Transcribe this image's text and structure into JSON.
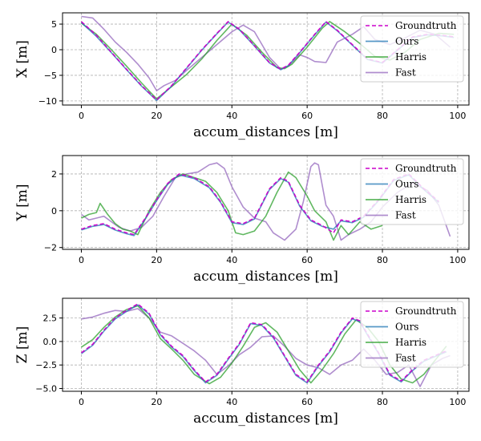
{
  "figure": {
    "panels": [
      {
        "id": "x",
        "ylabel": "X [m]",
        "xlabel": "accum_distances [m]"
      },
      {
        "id": "y",
        "ylabel": "Y [m]",
        "xlabel": "accum_distances [m]"
      },
      {
        "id": "z",
        "ylabel": "Z [m]",
        "xlabel": "accum_distances [m]"
      }
    ],
    "legend": [
      "Groundtruth",
      "Ours",
      "Harris",
      "Fast"
    ]
  },
  "chart_data": [
    {
      "type": "line",
      "xlabel": "accum_distances [m]",
      "ylabel": "X [m]",
      "xlim": [
        -5,
        103
      ],
      "ylim": [
        -10.8,
        7.2
      ],
      "xticks": [
        0,
        20,
        40,
        60,
        80,
        100
      ],
      "yticks": [
        5,
        0,
        -5,
        -10
      ],
      "grid": true,
      "legend_position": "top-right",
      "series": [
        {
          "name": "Groundtruth",
          "color": "#cc00cc",
          "dashed": true,
          "x": [
            0,
            4,
            8,
            12,
            16,
            20,
            24,
            28,
            32,
            36,
            39,
            42,
            46,
            50,
            53,
            55,
            58,
            62,
            65,
            68,
            72,
            76,
            80,
            84,
            88,
            92,
            96,
            99
          ],
          "y": [
            5.5,
            2.8,
            -0.5,
            -3.8,
            -7,
            -9.8,
            -7,
            -3.5,
            0,
            3.2,
            5.5,
            4,
            0.8,
            -2.5,
            -3.8,
            -3,
            -0.5,
            3,
            5.5,
            3.8,
            1,
            -1.8,
            -2.5,
            0,
            2.5,
            3,
            2.8,
            2.5
          ]
        },
        {
          "name": "Ours",
          "color": "#1f77b4",
          "x": [
            0,
            4,
            8,
            12,
            16,
            20,
            24,
            28,
            32,
            36,
            39,
            42,
            46,
            50,
            53,
            55,
            58,
            62,
            65,
            68,
            72,
            76,
            80,
            84,
            88,
            92,
            96,
            99
          ],
          "y": [
            5.3,
            2.6,
            -0.6,
            -3.9,
            -7.1,
            -9.9,
            -7.1,
            -3.6,
            -0.1,
            3.1,
            5.4,
            3.9,
            0.7,
            -2.6,
            -3.9,
            -3.1,
            -0.6,
            2.9,
            5.4,
            3.7,
            0.9,
            -1.9,
            -2.6,
            -0.1,
            2.4,
            2.9,
            2.7,
            2.4
          ]
        },
        {
          "name": "Harris",
          "color": "#2ca02c",
          "x": [
            0,
            4,
            8,
            12,
            16,
            20,
            24,
            28,
            32,
            36,
            40,
            44,
            48,
            52,
            54,
            56,
            60,
            64,
            66,
            70,
            74,
            78,
            82,
            86,
            90,
            95,
            99
          ],
          "y": [
            5.2,
            3,
            0,
            -3.2,
            -6.5,
            -9.6,
            -7.2,
            -4.8,
            -1.8,
            1.8,
            5,
            2.8,
            -0.5,
            -3.5,
            -3.7,
            -2.8,
            0.5,
            4.2,
            5.5,
            3.5,
            1.2,
            -1.3,
            -2,
            -0.5,
            2,
            3.2,
            3
          ]
        },
        {
          "name": "Fast",
          "color": "#9467bd",
          "x": [
            0,
            3,
            6,
            9,
            12,
            15,
            18,
            20,
            22,
            25,
            28,
            32,
            36,
            40,
            43,
            46,
            48,
            50,
            53,
            55,
            58,
            60,
            62,
            65,
            68,
            72,
            75,
            78,
            82,
            86,
            90,
            94,
            98
          ],
          "y": [
            6.5,
            6.2,
            4,
            1.5,
            -0.5,
            -2.8,
            -5.5,
            -8,
            -7,
            -6,
            -4,
            -1.5,
            1,
            3.5,
            4.8,
            3.5,
            1,
            -1.5,
            -3.8,
            -3.2,
            -1,
            -1.5,
            -2.3,
            -2.5,
            1.5,
            3,
            4.5,
            2,
            1,
            2.3,
            3.8,
            3,
            0.5
          ]
        }
      ]
    },
    {
      "type": "line",
      "xlabel": "accum_distances [m]",
      "ylabel": "Y [m]",
      "xlim": [
        -5,
        103
      ],
      "ylim": [
        -2.1,
        3
      ],
      "xticks": [
        0,
        20,
        40,
        60,
        80,
        100
      ],
      "yticks": [
        2,
        0,
        -2
      ],
      "grid": true,
      "legend_position": "top-right",
      "series": [
        {
          "name": "Groundtruth",
          "color": "#cc00cc",
          "dashed": true,
          "x": [
            0,
            3,
            6,
            9,
            12,
            14,
            17,
            20,
            23,
            26,
            30,
            34,
            37,
            40,
            43,
            46,
            50,
            53,
            55,
            58,
            61,
            64,
            67,
            69,
            72,
            75,
            79,
            83,
            87,
            91,
            95
          ],
          "y": [
            -1,
            -0.8,
            -0.7,
            -1,
            -1.2,
            -1.3,
            -0.4,
            0.6,
            1.5,
            2,
            1.8,
            1.3,
            0.5,
            -0.6,
            -0.7,
            -0.4,
            1.2,
            1.8,
            1.6,
            0.3,
            -0.5,
            -0.8,
            -1.2,
            -0.5,
            -0.6,
            -0.3,
            0.6,
            1.7,
            2.0,
            1.2,
            0.5
          ]
        },
        {
          "name": "Ours",
          "color": "#1f77b4",
          "x": [
            0,
            3,
            6,
            9,
            12,
            14,
            17,
            20,
            23,
            26,
            30,
            34,
            37,
            40,
            43,
            46,
            50,
            53,
            55,
            58,
            61,
            64,
            67,
            69,
            72,
            75,
            79,
            83,
            87,
            91,
            95
          ],
          "y": [
            -1.05,
            -0.85,
            -0.75,
            -1.05,
            -1.25,
            -1.35,
            -0.45,
            0.55,
            1.45,
            1.95,
            1.75,
            1.25,
            0.45,
            -0.65,
            -0.75,
            -0.45,
            1.15,
            1.75,
            1.55,
            0.25,
            -0.55,
            -0.85,
            -1,
            -0.55,
            -0.65,
            -0.35,
            0.55,
            1.65,
            1.95,
            1.15,
            0.45
          ]
        },
        {
          "name": "Harris",
          "color": "#2ca02c",
          "x": [
            0,
            2,
            4,
            5,
            7,
            9,
            11,
            13,
            15,
            18,
            21,
            24,
            27,
            30,
            33,
            36,
            39,
            41,
            43,
            46,
            49,
            52,
            55,
            57,
            60,
            62,
            65,
            67,
            69,
            71,
            74,
            77,
            80
          ],
          "y": [
            -0.4,
            -0.2,
            -0.1,
            0.4,
            -0.2,
            -0.7,
            -1,
            -1.1,
            -1.3,
            0,
            1,
            1.7,
            2,
            1.8,
            1.6,
            1,
            0,
            -1.2,
            -1.3,
            -1.1,
            -0.3,
            1,
            2.1,
            1.8,
            0.8,
            0,
            -0.6,
            -1.6,
            -0.8,
            -1.3,
            -0.6,
            -1,
            -0.8
          ]
        },
        {
          "name": "Fast",
          "color": "#9467bd",
          "x": [
            0,
            2,
            4,
            6,
            8,
            10,
            13,
            16,
            19,
            22,
            25,
            28,
            31,
            34,
            36,
            38,
            40,
            43,
            46,
            49,
            51,
            54,
            57,
            59,
            61,
            62,
            63,
            65,
            67,
            69,
            71,
            74,
            77,
            80,
            84,
            88,
            92,
            95,
            98
          ],
          "y": [
            -0.2,
            -0.5,
            -0.4,
            -0.3,
            -0.6,
            -0.9,
            -1.1,
            -0.9,
            -0.3,
            0.8,
            1.8,
            2,
            2.1,
            2.5,
            2.6,
            2.3,
            1.3,
            0.2,
            -0.4,
            -0.6,
            -1.2,
            -1.6,
            -1,
            0.5,
            2.4,
            2.6,
            2.5,
            0.3,
            -0.3,
            -1.6,
            -1.3,
            -1,
            -0.6,
            0.2,
            1,
            1.5,
            1.1,
            0.3,
            -1.4
          ]
        }
      ]
    },
    {
      "type": "line",
      "xlabel": "accum_distances [m]",
      "ylabel": "Z [m]",
      "xlim": [
        -5,
        103
      ],
      "ylim": [
        -5.3,
        4.6
      ],
      "xticks": [
        0,
        20,
        40,
        60,
        80,
        100
      ],
      "yticks": [
        2.5,
        0.0,
        -2.5,
        -5.0
      ],
      "ytick_labels": [
        "2.5",
        "0.0",
        "−2.5",
        "−5.0"
      ],
      "grid": true,
      "legend_position": "top-right",
      "series": [
        {
          "name": "Groundtruth",
          "color": "#cc00cc",
          "dashed": true,
          "x": [
            0,
            3,
            6,
            9,
            12,
            15,
            18,
            21,
            24,
            27,
            30,
            33,
            36,
            39,
            42,
            45,
            48,
            51,
            54,
            57,
            60,
            63,
            66,
            69,
            72,
            74,
            76,
            79,
            82,
            85,
            88,
            91,
            94,
            97
          ],
          "y": [
            -1.2,
            -0.3,
            1.2,
            2.5,
            3.3,
            4,
            3,
            0.8,
            -0.5,
            -1.5,
            -3,
            -4.3,
            -3.5,
            -1.8,
            -0.2,
            2,
            1.8,
            0.5,
            -1.5,
            -3.5,
            -4.3,
            -2.5,
            -1,
            1,
            2.5,
            2.2,
            0.8,
            -1.2,
            -3.5,
            -4.2,
            -3,
            -2,
            -1.5,
            -1
          ]
        },
        {
          "name": "Ours",
          "color": "#1f77b4",
          "x": [
            0,
            3,
            6,
            9,
            12,
            15,
            18,
            21,
            24,
            27,
            30,
            33,
            36,
            39,
            42,
            45,
            48,
            51,
            54,
            57,
            60,
            63,
            66,
            69,
            72,
            74,
            76,
            79,
            82,
            85,
            88,
            91,
            94,
            97
          ],
          "y": [
            -1.3,
            -0.4,
            1.1,
            2.4,
            3.2,
            3.9,
            2.9,
            0.7,
            -0.6,
            -1.6,
            -3.1,
            -4.4,
            -3.6,
            -1.9,
            -0.3,
            1.9,
            1.7,
            0.4,
            -1.6,
            -3.6,
            -4.4,
            -2.6,
            -1.1,
            0.9,
            2.4,
            2.1,
            0.7,
            -1.3,
            -3.6,
            -4.3,
            -3.1,
            -2.1,
            -1.6,
            -1.1
          ]
        },
        {
          "name": "Harris",
          "color": "#2ca02c",
          "x": [
            0,
            3,
            6,
            9,
            12,
            15,
            18,
            21,
            24,
            27,
            30,
            34,
            37,
            40,
            43,
            46,
            49,
            52,
            55,
            58,
            61,
            64,
            67,
            70,
            73,
            76,
            79,
            82,
            85,
            88,
            91,
            94,
            97
          ],
          "y": [
            -0.6,
            0.2,
            1.5,
            2.6,
            3.4,
            3.8,
            2.5,
            0.3,
            -0.8,
            -2,
            -3.5,
            -4.5,
            -3.8,
            -2.3,
            -0.5,
            1.5,
            2,
            1,
            -1,
            -3,
            -4.4,
            -3,
            -1.3,
            0.8,
            2.3,
            1.5,
            0,
            -2.5,
            -4,
            -4.4,
            -3.5,
            -2,
            -0.5
          ]
        },
        {
          "name": "Fast",
          "color": "#9467bd",
          "x": [
            0,
            3,
            6,
            9,
            12,
            15,
            18,
            21,
            24,
            27,
            30,
            33,
            36,
            39,
            42,
            45,
            48,
            51,
            54,
            57,
            60,
            63,
            66,
            69,
            72,
            75,
            78,
            81,
            84,
            87,
            90,
            93,
            96,
            98
          ],
          "y": [
            2.4,
            2.6,
            3,
            3.3,
            3.2,
            3.5,
            2.5,
            1,
            0.6,
            -0.2,
            -1,
            -2,
            -3.5,
            -2.6,
            -1.4,
            -0.6,
            0.5,
            0.6,
            -0.5,
            -1.8,
            -2.5,
            -2.8,
            -3.5,
            -2.5,
            -2,
            -0.8,
            -2,
            -3.5,
            -3.3,
            -2.5,
            -4.8,
            -2.5,
            -1.8,
            -1.5
          ]
        }
      ]
    }
  ]
}
